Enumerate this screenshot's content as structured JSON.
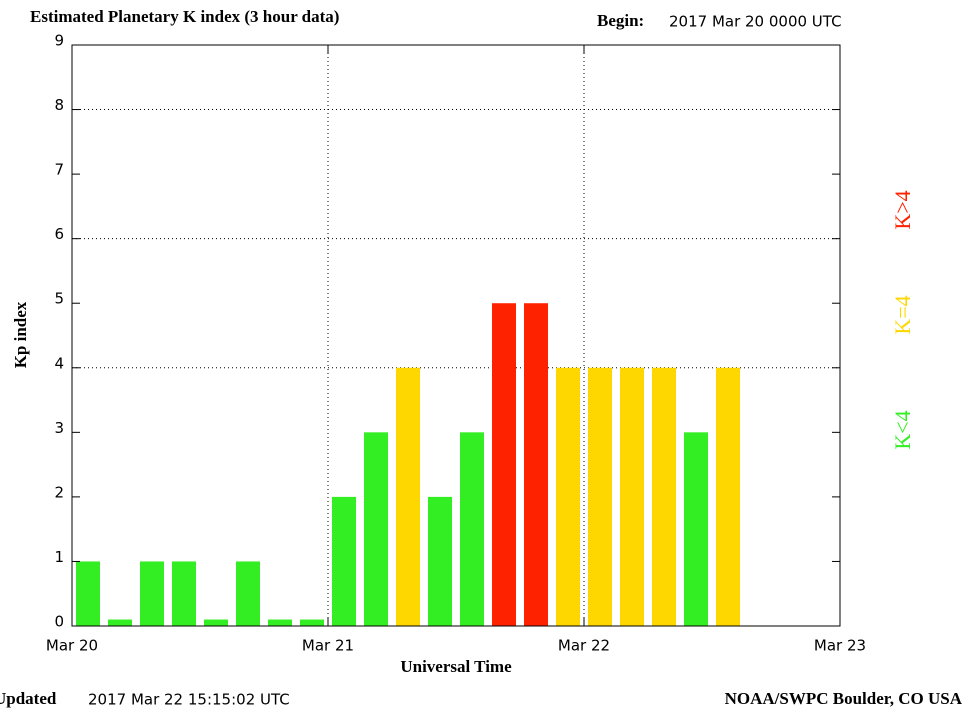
{
  "chart_data": {
    "type": "bar",
    "title": "Estimated Planetary K index (3 hour data)",
    "begin_label": "Begin:",
    "begin_value": "2017 Mar 20 0000 UTC",
    "ylabel": "Kp index",
    "xlabel": "Universal Time",
    "updated_label": "Updated",
    "updated_value": "2017 Mar 22 15:15:02 UTC",
    "credit": "NOAA/SWPC Boulder, CO USA",
    "x": [
      0,
      0.125,
      0.25,
      0.375,
      0.5,
      0.625,
      0.75,
      0.875,
      1,
      1.125,
      1.25,
      1.375,
      1.5,
      1.625,
      1.75,
      1.875,
      2,
      2.125,
      2.25,
      2.375,
      2.5
    ],
    "values": [
      1,
      0.1,
      1,
      1,
      0.1,
      1,
      0.1,
      0.1,
      2,
      3,
      4,
      2,
      3,
      5,
      5,
      4,
      4,
      4,
      4,
      3,
      4
    ],
    "colors": [
      "#33ee22",
      "#33ee22",
      "#33ee22",
      "#33ee22",
      "#33ee22",
      "#33ee22",
      "#33ee22",
      "#33ee22",
      "#33ee22",
      "#33ee22",
      "#ffd700",
      "#33ee22",
      "#33ee22",
      "#ff2200",
      "#ff2200",
      "#ffd700",
      "#ffd700",
      "#ffd700",
      "#ffd700",
      "#33ee22",
      "#ffd700"
    ],
    "bin_width": 0.125,
    "xlim": [
      0,
      3
    ],
    "xticks": [
      {
        "value": 0,
        "label": "Mar 20"
      },
      {
        "value": 1,
        "label": "Mar 21"
      },
      {
        "value": 2,
        "label": "Mar 22"
      },
      {
        "value": 3,
        "label": "Mar 23"
      }
    ],
    "ylim": [
      0,
      9
    ],
    "yticks": [
      0,
      1,
      2,
      3,
      4,
      5,
      6,
      7,
      8,
      9
    ],
    "xgrid": [
      1,
      2
    ],
    "ygrid": [
      4,
      6,
      8
    ],
    "legend": [
      {
        "label": "K<4",
        "color": "#33ee22"
      },
      {
        "label": "K=4",
        "color": "#ffd700"
      },
      {
        "label": "K>4",
        "color": "#ff2200"
      }
    ]
  }
}
